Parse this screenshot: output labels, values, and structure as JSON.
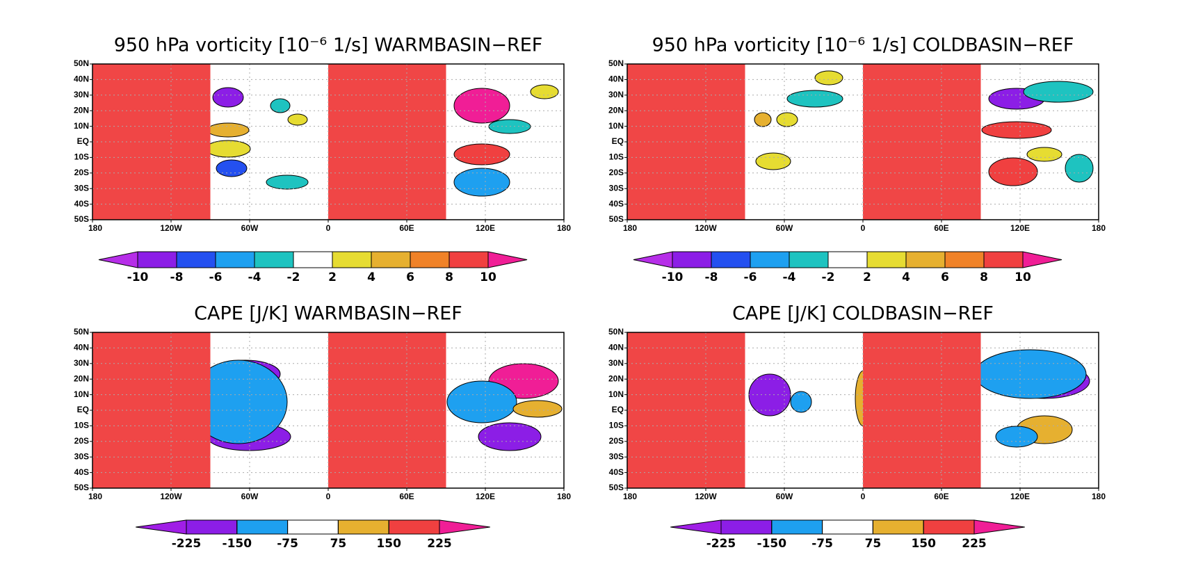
{
  "lat_labels": [
    "50N",
    "40N",
    "30N",
    "20N",
    "10N",
    "EQ",
    "10S",
    "20S",
    "30S",
    "40S",
    "50S"
  ],
  "lon_labels": [
    "180",
    "120W",
    "60W",
    "0",
    "60E",
    "120E",
    "180"
  ],
  "panels": [
    {
      "title": "950 hPa vorticity [10⁻⁶ 1/s] WARMBASIN−REF",
      "colorbar": {
        "ticks": [
          -10,
          -8,
          -6,
          -4,
          -2,
          2,
          4,
          6,
          8,
          10
        ],
        "colors": [
          "#b62ee8",
          "#8c1ee6",
          "#2450f0",
          "#1ea0f0",
          "#1ec3c0",
          "#ffffff",
          "#e6dc32",
          "#e6b030",
          "#f08228",
          "#f04040",
          "#f01e96"
        ]
      }
    },
    {
      "title": "950 hPa vorticity [10⁻⁶ 1/s] COLDBASIN−REF",
      "colorbar": {
        "ticks": [
          -10,
          -8,
          -6,
          -4,
          -2,
          2,
          4,
          6,
          8,
          10
        ],
        "colors": [
          "#b62ee8",
          "#8c1ee6",
          "#2450f0",
          "#1ea0f0",
          "#1ec3c0",
          "#ffffff",
          "#e6dc32",
          "#e6b030",
          "#f08228",
          "#f04040",
          "#f01e96"
        ]
      }
    },
    {
      "title": "CAPE [J/K] WARMBASIN−REF",
      "colorbar": {
        "ticks": [
          -225,
          -150,
          -75,
          75,
          150,
          225
        ],
        "colors": [
          "#a01ee6",
          "#8c1ee6",
          "#1ea0f0",
          "#ffffff",
          "#e6b030",
          "#f04040",
          "#f01e96"
        ]
      }
    },
    {
      "title": "CAPE [J/K] COLDBASIN−REF",
      "colorbar": {
        "ticks": [
          -225,
          -150,
          -75,
          75,
          150,
          225
        ],
        "colors": [
          "#a01ee6",
          "#8c1ee6",
          "#1ea0f0",
          "#ffffff",
          "#e6b030",
          "#f04040",
          "#f01e96"
        ]
      }
    }
  ]
}
